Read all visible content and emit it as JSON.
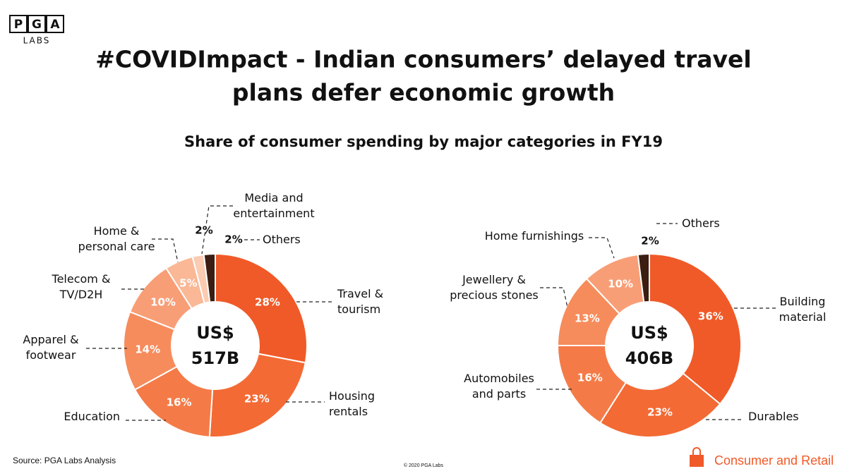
{
  "header": {
    "logo_letters": [
      "P",
      "G",
      "A"
    ],
    "logo_sub": "LABS",
    "title_lines": [
      "#COVIDImpact - Indian consumers’ delayed travel",
      "plans defer economic growth"
    ],
    "subtitle": "Share of consumer spending by major categories in FY19"
  },
  "chart_data": [
    {
      "type": "pie",
      "center_label": [
        "US$",
        "517B"
      ],
      "categories": [
        "Travel &\ntourism",
        "Housing\nrentals",
        "Education",
        "Apparel &\nfootwear",
        "Telecom &\nTV/D2H",
        "Home &\npersonal care",
        "Media and\nentertainment",
        "Others"
      ],
      "values": [
        28,
        23,
        16,
        14,
        10,
        5,
        2,
        2
      ],
      "value_labels": [
        "28%",
        "23%",
        "16%",
        "14%",
        "10%",
        "5%",
        "2%",
        "2%"
      ],
      "colors": [
        "#f05a28",
        "#f36a35",
        "#f47b48",
        "#f68c5c",
        "#f89e76",
        "#fab896",
        "#fbcbb2",
        "#3b1d12"
      ]
    },
    {
      "type": "pie",
      "center_label": [
        "US$",
        "406B"
      ],
      "categories": [
        "Building\nmaterial",
        "Durables",
        "Automobiles\nand parts",
        "Jewellery &\nprecious stones",
        "Home furnishings",
        "Others"
      ],
      "values": [
        36,
        23,
        16,
        13,
        10,
        2
      ],
      "value_labels": [
        "36%",
        "23%",
        "16%",
        "13%",
        "10%",
        "2%"
      ],
      "colors": [
        "#f05a28",
        "#f36a35",
        "#f47b48",
        "#f68c5c",
        "#f89e76",
        "#3b1d12"
      ]
    }
  ],
  "footer": {
    "source": "Source: PGA Labs Analysis",
    "copyright": "© 2020 PGA Labs",
    "brand": "Consumer and Retail"
  }
}
